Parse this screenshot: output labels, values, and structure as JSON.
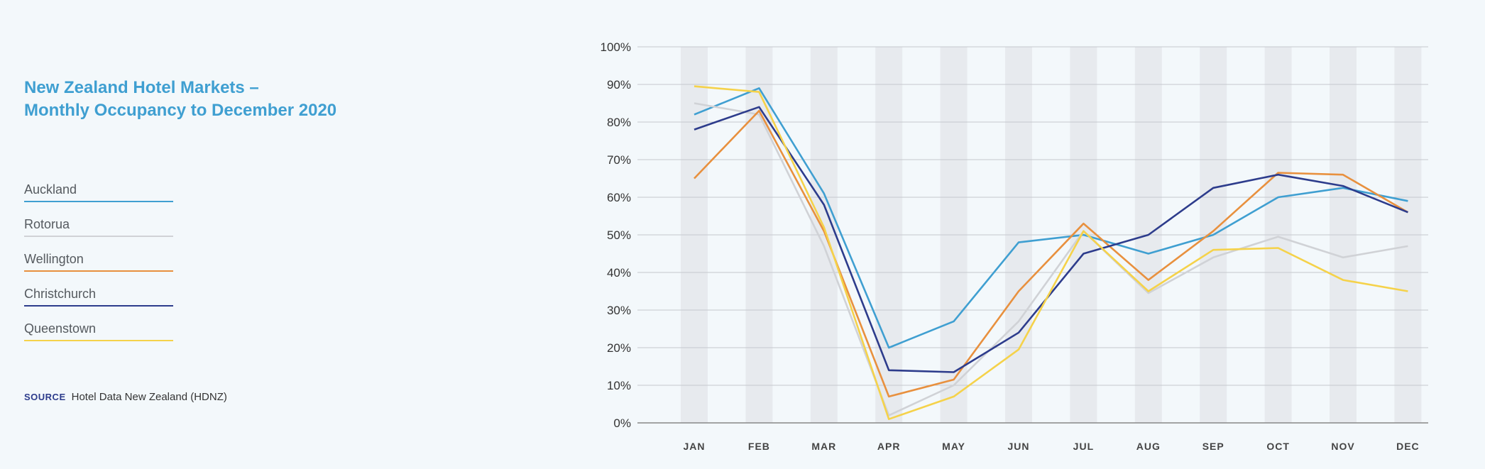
{
  "title_lines": [
    "New Zealand Hotel Markets –",
    "Monthly Occupancy to December 2020"
  ],
  "source": {
    "label": "SOURCE",
    "text": "Hotel Data New Zealand (HDNZ)"
  },
  "chart_data": {
    "type": "line",
    "title": "New Zealand Hotel Markets – Monthly Occupancy to December 2020",
    "categories": [
      "JAN",
      "FEB",
      "MAR",
      "APR",
      "MAY",
      "JUN",
      "JUL",
      "AUG",
      "SEP",
      "OCT",
      "NOV",
      "DEC"
    ],
    "ylim": [
      0,
      100
    ],
    "yticks": [
      "0%",
      "10%",
      "20%",
      "30%",
      "40%",
      "50%",
      "60%",
      "70%",
      "80%",
      "90%",
      "100%"
    ],
    "grid": true,
    "legend_position": "left",
    "series": [
      {
        "name": "Auckland",
        "color": "#3f9fd1",
        "values": [
          82,
          89,
          61,
          20,
          27,
          48,
          50,
          45,
          50,
          60,
          62.5,
          59
        ]
      },
      {
        "name": "Rotorua",
        "color": "#d0d2d6",
        "values": [
          85,
          82,
          47,
          2,
          10,
          27,
          51,
          34.5,
          44,
          49.5,
          44,
          47
        ]
      },
      {
        "name": "Wellington",
        "color": "#e8903e",
        "values": [
          65,
          83,
          51,
          7,
          11.5,
          35,
          53,
          38,
          51,
          66.5,
          66,
          56
        ]
      },
      {
        "name": "Christchurch",
        "color": "#2d3c8c",
        "values": [
          78,
          84,
          58,
          14,
          13.5,
          24,
          45,
          50,
          62.5,
          66,
          63,
          56
        ]
      },
      {
        "name": "Queenstown",
        "color": "#f5d24a",
        "values": [
          89.5,
          88,
          52,
          1,
          7,
          19.5,
          51,
          35,
          46,
          46.5,
          38,
          35
        ]
      }
    ]
  }
}
